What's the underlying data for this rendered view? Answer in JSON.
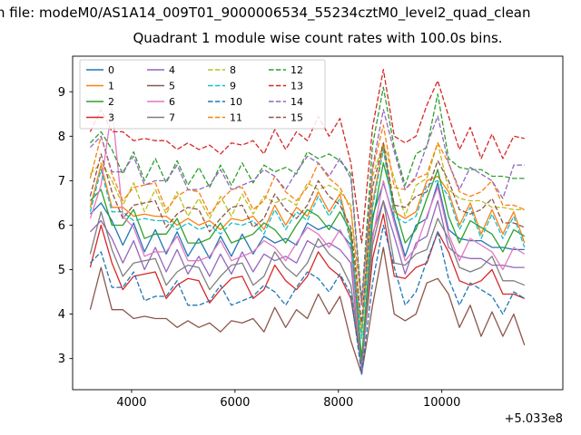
{
  "figure": {
    "title_line1": "n file: modeM0/AS1A14_009T01_9000006534_55234cztM0_level2_quad_clean",
    "title_line2": "Quadrant 1 module wise count rates with 100.0s bins.",
    "x_offset_label": "+5.033e8"
  },
  "chart_data": {
    "type": "line",
    "title": "Quadrant 1 module wise count rates with 100.0s bins.",
    "xlabel": "",
    "ylabel": "",
    "xlim": [
      2860,
      12340
    ],
    "ylim": [
      2.3,
      9.8
    ],
    "xticks": [
      4000,
      6000,
      8000,
      10000
    ],
    "yticks": [
      3,
      4,
      5,
      6,
      7,
      8,
      9
    ],
    "x_axis_offset": "+5.033e8",
    "grid": false,
    "legend_position": "upper-left",
    "legend_columns": 4,
    "x": [
      3200,
      3410,
      3620,
      3830,
      4040,
      4250,
      4460,
      4670,
      4880,
      5090,
      5300,
      5510,
      5720,
      5930,
      6140,
      6350,
      6560,
      6770,
      6980,
      7190,
      7400,
      7610,
      7820,
      8030,
      8240,
      8450,
      8660,
      8870,
      9080,
      9290,
      9500,
      9710,
      9920,
      10130,
      10340,
      10550,
      10760,
      10970,
      11180,
      11390,
      11600
    ],
    "series": [
      {
        "name": "0",
        "color": "#1f77b4",
        "dash": false,
        "values": [
          6.25,
          6.5,
          6.1,
          5.55,
          6.05,
          5.4,
          5.9,
          5.35,
          5.85,
          5.3,
          5.7,
          5.25,
          5.75,
          5.3,
          5.8,
          5.35,
          5.75,
          5.6,
          5.7,
          5.55,
          6.05,
          5.9,
          6.0,
          5.85,
          5.55,
          2.7,
          6.2,
          6.95,
          6.15,
          5.3,
          6.0,
          6.15,
          6.95,
          5.9,
          5.7,
          5.65,
          5.65,
          5.5,
          5.5,
          5.45,
          5.45
        ]
      },
      {
        "name": "1",
        "color": "#ff7f0e",
        "dash": false,
        "values": [
          6.4,
          7.35,
          6.4,
          6.4,
          6.2,
          6.25,
          6.2,
          6.2,
          6.0,
          6.15,
          6.0,
          6.1,
          5.9,
          6.15,
          6.1,
          6.2,
          5.9,
          6.45,
          6.0,
          6.4,
          6.2,
          6.75,
          6.3,
          6.7,
          5.7,
          3.55,
          6.5,
          7.8,
          6.3,
          6.15,
          6.3,
          7.0,
          7.1,
          6.75,
          6.0,
          6.5,
          5.8,
          6.35,
          5.8,
          6.3,
          5.6
        ]
      },
      {
        "name": "2",
        "color": "#2ca02c",
        "dash": false,
        "values": [
          6.55,
          6.8,
          6.0,
          6.0,
          6.35,
          5.7,
          5.8,
          5.8,
          6.15,
          5.6,
          5.6,
          5.7,
          6.05,
          5.6,
          5.7,
          5.8,
          6.05,
          5.9,
          5.6,
          6.0,
          6.35,
          6.2,
          5.9,
          6.3,
          5.85,
          3.0,
          6.1,
          7.4,
          6.45,
          5.6,
          5.9,
          6.6,
          7.25,
          6.2,
          5.6,
          6.1,
          5.95,
          5.8,
          5.4,
          5.9,
          5.75
        ]
      },
      {
        "name": "3",
        "color": "#d62728",
        "dash": false,
        "values": [
          5.05,
          6.0,
          5.15,
          4.55,
          4.85,
          4.9,
          4.95,
          4.35,
          4.65,
          4.8,
          4.75,
          4.25,
          4.55,
          4.8,
          4.85,
          4.35,
          4.55,
          5.1,
          4.75,
          4.55,
          4.85,
          5.4,
          5.05,
          4.85,
          4.35,
          2.85,
          5.25,
          6.25,
          4.85,
          4.8,
          5.05,
          5.15,
          5.85,
          5.4,
          4.75,
          4.65,
          4.75,
          5.0,
          4.45,
          4.45,
          4.35
        ]
      },
      {
        "name": "4",
        "color": "#9467bd",
        "dash": false,
        "values": [
          5.85,
          6.1,
          5.7,
          5.15,
          5.65,
          5.0,
          5.5,
          4.95,
          5.45,
          4.9,
          5.3,
          4.85,
          5.35,
          4.9,
          5.4,
          4.95,
          5.35,
          5.2,
          5.3,
          5.15,
          5.65,
          5.5,
          5.6,
          5.45,
          5.15,
          2.65,
          5.8,
          6.55,
          5.75,
          4.9,
          5.6,
          5.75,
          6.55,
          5.5,
          5.3,
          5.25,
          5.25,
          5.1,
          5.1,
          5.05,
          5.05
        ]
      },
      {
        "name": "5",
        "color": "#8c564b",
        "dash": false,
        "values": [
          4.1,
          5.05,
          4.1,
          4.1,
          3.9,
          3.95,
          3.9,
          3.9,
          3.7,
          3.85,
          3.7,
          3.8,
          3.6,
          3.85,
          3.8,
          3.9,
          3.6,
          4.15,
          3.7,
          4.1,
          3.9,
          4.45,
          4.0,
          4.4,
          3.4,
          2.65,
          4.2,
          5.5,
          4.0,
          3.85,
          4.0,
          4.7,
          4.8,
          4.45,
          3.7,
          4.2,
          3.5,
          4.05,
          3.5,
          4.0,
          3.3
        ]
      },
      {
        "name": "6",
        "color": "#e377c2",
        "dash": false,
        "values": [
          6.15,
          6.9,
          8.65,
          6.2,
          5.95,
          5.3,
          5.4,
          5.4,
          5.75,
          5.2,
          5.2,
          5.3,
          5.65,
          5.2,
          5.3,
          5.4,
          5.65,
          5.5,
          5.2,
          5.6,
          5.95,
          5.8,
          5.5,
          5.9,
          5.45,
          2.65,
          5.7,
          7.0,
          6.05,
          5.2,
          5.5,
          6.2,
          6.85,
          5.8,
          5.2,
          5.7,
          5.55,
          5.4,
          5.0,
          5.5,
          5.35
        ]
      },
      {
        "name": "7",
        "color": "#7f7f7f",
        "dash": false,
        "values": [
          5.35,
          6.3,
          5.45,
          4.85,
          5.15,
          5.2,
          5.25,
          4.65,
          4.95,
          5.1,
          5.05,
          4.55,
          4.85,
          5.1,
          5.15,
          4.65,
          4.85,
          5.4,
          5.05,
          4.85,
          5.15,
          5.7,
          5.35,
          5.15,
          4.65,
          2.85,
          5.55,
          6.55,
          5.15,
          5.1,
          5.35,
          5.45,
          6.15,
          5.7,
          5.05,
          4.95,
          5.05,
          5.3,
          4.75,
          4.75,
          4.65
        ]
      },
      {
        "name": "8",
        "color": "#bcbd22",
        "dash": true,
        "values": [
          7.15,
          7.4,
          7.0,
          6.45,
          6.95,
          6.3,
          6.8,
          6.25,
          6.75,
          6.2,
          6.6,
          6.15,
          6.65,
          6.2,
          6.7,
          6.25,
          6.65,
          6.5,
          6.6,
          6.45,
          6.95,
          6.8,
          6.9,
          6.75,
          6.45,
          3.6,
          7.1,
          7.85,
          7.05,
          6.2,
          6.9,
          7.05,
          7.85,
          6.8,
          6.6,
          6.55,
          6.55,
          6.4,
          6.4,
          6.35,
          6.35
        ]
      },
      {
        "name": "9",
        "color": "#17becf",
        "dash": true,
        "values": [
          6.3,
          7.25,
          6.3,
          6.3,
          6.1,
          6.15,
          6.1,
          6.1,
          5.9,
          6.05,
          5.9,
          6.0,
          5.8,
          6.05,
          6.0,
          6.1,
          5.8,
          6.35,
          5.9,
          6.3,
          6.1,
          6.65,
          6.2,
          6.6,
          5.6,
          3.45,
          6.4,
          7.7,
          6.2,
          6.05,
          6.2,
          6.9,
          7.0,
          6.65,
          5.9,
          6.4,
          5.7,
          6.25,
          5.7,
          6.2,
          5.5
        ]
      },
      {
        "name": "10",
        "color": "#1f77b4",
        "dash": true,
        "values": [
          5.15,
          5.4,
          4.6,
          4.6,
          4.95,
          4.3,
          4.4,
          4.4,
          4.75,
          4.2,
          4.2,
          4.3,
          4.65,
          4.2,
          4.3,
          4.4,
          4.65,
          4.5,
          4.2,
          4.6,
          4.95,
          4.8,
          4.5,
          4.9,
          4.45,
          2.65,
          4.7,
          6.0,
          5.05,
          4.2,
          4.5,
          5.2,
          5.85,
          4.8,
          4.2,
          4.7,
          4.55,
          4.4,
          4.0,
          4.5,
          4.35
        ]
      },
      {
        "name": "11",
        "color": "#ff7f0e",
        "dash": true,
        "values": [
          7.05,
          8.0,
          7.15,
          6.55,
          6.85,
          6.9,
          6.95,
          6.35,
          6.65,
          6.8,
          6.75,
          6.25,
          6.55,
          6.8,
          6.85,
          6.35,
          6.55,
          7.1,
          6.75,
          6.55,
          6.85,
          7.4,
          7.05,
          6.85,
          6.35,
          4.2,
          7.25,
          8.25,
          6.85,
          6.8,
          7.05,
          7.15,
          7.85,
          7.4,
          6.75,
          6.65,
          6.75,
          7.0,
          6.45,
          6.45,
          6.35
        ]
      },
      {
        "name": "12",
        "color": "#2ca02c",
        "dash": true,
        "values": [
          7.85,
          8.1,
          7.7,
          7.15,
          7.65,
          7.0,
          7.5,
          6.95,
          7.45,
          6.9,
          7.3,
          6.85,
          7.35,
          6.9,
          7.4,
          6.95,
          7.35,
          7.2,
          7.3,
          7.15,
          7.65,
          7.5,
          7.6,
          7.45,
          7.15,
          4.3,
          7.8,
          9.1,
          7.75,
          6.9,
          7.6,
          7.75,
          8.95,
          7.5,
          7.3,
          7.25,
          7.25,
          7.1,
          7.1,
          7.05,
          7.05
        ]
      },
      {
        "name": "13",
        "color": "#d62728",
        "dash": true,
        "values": [
          8.1,
          8.6,
          8.1,
          8.1,
          7.9,
          7.95,
          7.9,
          7.9,
          7.7,
          7.85,
          7.7,
          7.8,
          7.6,
          7.85,
          7.8,
          7.9,
          7.6,
          8.15,
          7.7,
          8.1,
          7.9,
          8.45,
          8.0,
          8.4,
          7.4,
          5.6,
          8.2,
          9.5,
          8.0,
          7.85,
          8.0,
          8.7,
          9.25,
          8.45,
          7.7,
          8.2,
          7.5,
          8.05,
          7.5,
          8.0,
          7.95
        ]
      },
      {
        "name": "14",
        "color": "#9467bd",
        "dash": true,
        "values": [
          7.75,
          8.0,
          7.2,
          7.2,
          7.55,
          6.9,
          7.0,
          7.0,
          7.35,
          6.8,
          6.8,
          6.9,
          7.25,
          6.8,
          6.9,
          7.0,
          7.25,
          7.1,
          6.8,
          7.2,
          7.55,
          7.4,
          7.1,
          7.5,
          7.05,
          4.2,
          7.3,
          8.6,
          7.65,
          6.8,
          7.1,
          7.8,
          8.45,
          7.4,
          6.8,
          7.3,
          7.15,
          7.0,
          6.6,
          7.35,
          7.35
        ]
      },
      {
        "name": "15",
        "color": "#8c564b",
        "dash": true,
        "values": [
          6.65,
          7.6,
          6.75,
          6.15,
          6.45,
          6.5,
          6.55,
          5.95,
          6.25,
          6.4,
          6.35,
          5.85,
          6.15,
          6.4,
          6.45,
          5.95,
          6.15,
          6.7,
          6.35,
          6.15,
          6.45,
          7.0,
          6.65,
          6.45,
          5.95,
          3.8,
          6.85,
          7.85,
          6.45,
          6.4,
          6.65,
          6.75,
          7.45,
          7.0,
          6.35,
          6.25,
          6.35,
          6.6,
          6.05,
          6.05,
          5.95
        ]
      }
    ]
  }
}
